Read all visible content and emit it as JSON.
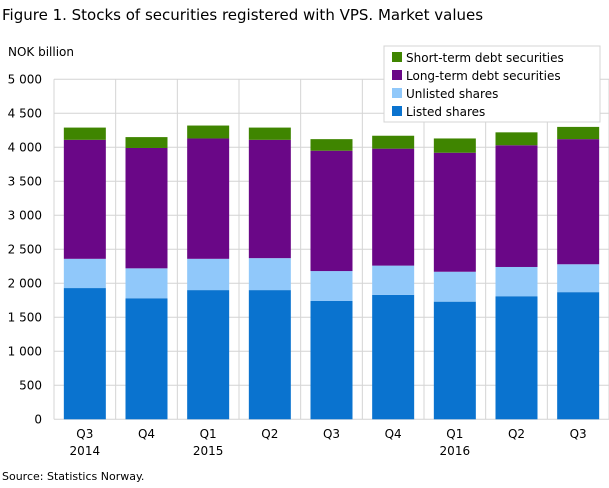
{
  "title": "Figure 1. Stocks of securities registered with VPS. Market values",
  "source": "Source: Statistics Norway.",
  "chart_data": {
    "type": "bar",
    "stacked": true,
    "ylabel": "NOK billion",
    "ylim": [
      0,
      5000
    ],
    "yticks": [
      0,
      500,
      1000,
      1500,
      2000,
      2500,
      3000,
      3500,
      4000,
      4500,
      5000
    ],
    "ytick_labels": [
      "0",
      "500",
      "1 000",
      "1 500",
      "2 000",
      "2 500",
      "3 000",
      "3 500",
      "4 000",
      "4 500",
      "5 000"
    ],
    "grid": true,
    "legend": "top-right",
    "categories": [
      [
        "Q3",
        "2014"
      ],
      [
        "Q4",
        ""
      ],
      [
        "Q1",
        "2015"
      ],
      [
        "Q2",
        ""
      ],
      [
        "Q3",
        ""
      ],
      [
        "Q4",
        ""
      ],
      [
        "Q1",
        "2016"
      ],
      [
        "Q2",
        ""
      ],
      [
        "Q3",
        ""
      ]
    ],
    "series": [
      {
        "name": "Listed shares",
        "color": "#0a73cf",
        "values": [
          1930,
          1780,
          1900,
          1900,
          1740,
          1830,
          1730,
          1810,
          1870
        ]
      },
      {
        "name": "Unlisted shares",
        "color": "#90c8fa",
        "values": [
          430,
          440,
          460,
          470,
          440,
          430,
          440,
          430,
          410
        ]
      },
      {
        "name": "Long-term debt securities",
        "color": "#6a0787",
        "values": [
          1750,
          1770,
          1770,
          1740,
          1770,
          1720,
          1750,
          1790,
          1840
        ]
      },
      {
        "name": "Short-term debt securities",
        "color": "#3f8500",
        "values": [
          180,
          160,
          190,
          180,
          170,
          190,
          210,
          190,
          180
        ]
      }
    ]
  }
}
